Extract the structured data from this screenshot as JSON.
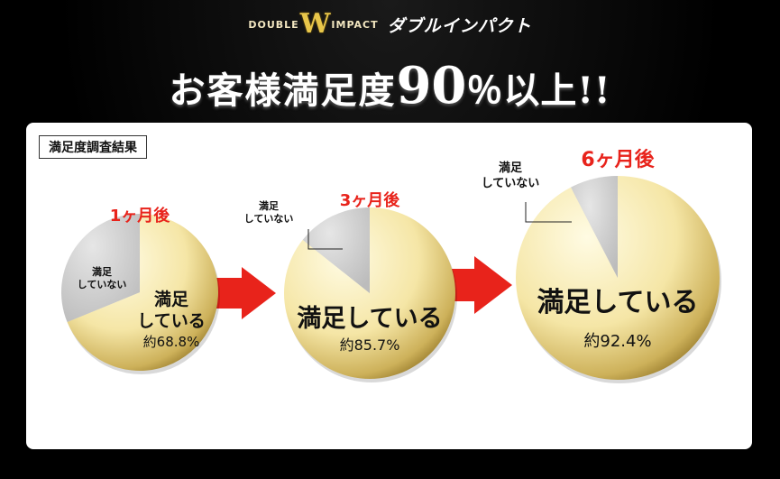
{
  "brand": {
    "double": "DOUBLE",
    "w": "W",
    "impact": "IMPACT",
    "ja": "ダブルインパクト"
  },
  "headline": {
    "prefix": "お客様満足度",
    "number": "90",
    "suffix": "％以上!!"
  },
  "panel_title": "満足度調査結果",
  "colors": {
    "gold_light": "#fff3c4",
    "gold_dark": "#a88a2e",
    "gray": "#d4d4d4",
    "red": "#e8231b"
  },
  "chart_data": [
    {
      "type": "pie",
      "title": "1ヶ月後",
      "slices": [
        {
          "label": "満足している",
          "value": 68.8,
          "value_text": "約68.8%"
        },
        {
          "label": "満足していない",
          "value": 31.2
        }
      ]
    },
    {
      "type": "pie",
      "title": "3ヶ月後",
      "slices": [
        {
          "label": "満足している",
          "value": 85.7,
          "value_text": "約85.7%"
        },
        {
          "label": "満足していない",
          "value": 14.3
        }
      ]
    },
    {
      "type": "pie",
      "title": "6ヶ月後",
      "slices": [
        {
          "label": "満足している",
          "value": 92.4,
          "value_text": "約92.4%"
        },
        {
          "label": "満足していない",
          "value": 7.6
        }
      ]
    }
  ]
}
